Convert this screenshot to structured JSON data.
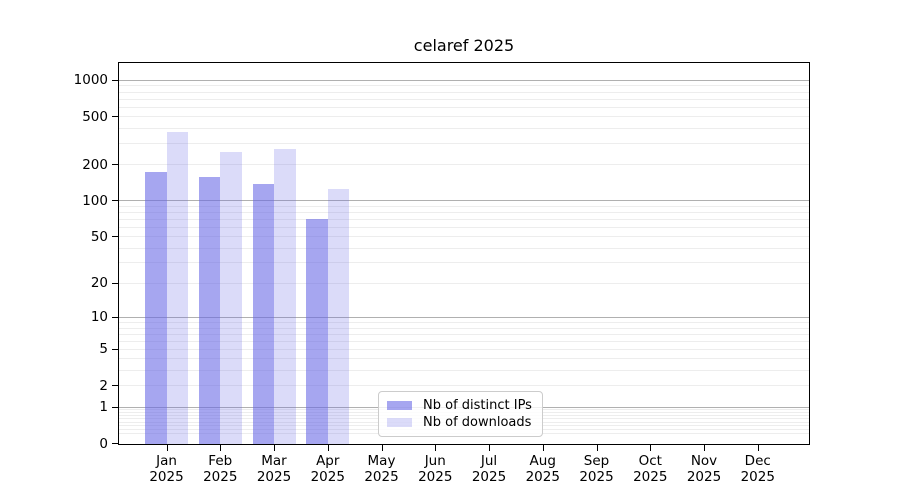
{
  "chart_data": {
    "type": "bar",
    "title": "celaref 2025",
    "categories": [
      "Jan 2025",
      "Feb 2025",
      "Mar 2025",
      "Apr 2025",
      "May 2025",
      "Jun 2025",
      "Jul 2025",
      "Aug 2025",
      "Sep 2025",
      "Oct 2025",
      "Nov 2025",
      "Dec 2025"
    ],
    "months": [
      "Jan",
      "Feb",
      "Mar",
      "Apr",
      "May",
      "Jun",
      "Jul",
      "Aug",
      "Sep",
      "Oct",
      "Nov",
      "Dec"
    ],
    "year": "2025",
    "series": [
      {
        "name": "Nb of distinct IPs",
        "color": "rgba(102,102,230,0.58)",
        "values": [
          175,
          159,
          140,
          71,
          0,
          0,
          0,
          0,
          0,
          0,
          0,
          0
        ]
      },
      {
        "name": "Nb of downloads",
        "color": "rgba(102,102,230,0.235)",
        "values": [
          379,
          259,
          272,
          126,
          0,
          0,
          0,
          0,
          0,
          0,
          0,
          0
        ]
      }
    ],
    "xlabel": "",
    "ylabel": "",
    "y_axis": {
      "scale": "log1p",
      "ticks": [
        0,
        1,
        2,
        5,
        10,
        20,
        50,
        100,
        200,
        500,
        1000
      ],
      "ylim": [
        0,
        1404
      ]
    },
    "grid": {
      "major_values": [
        1,
        10,
        100,
        1000
      ],
      "minor_decades": [
        0.1,
        1,
        10,
        100
      ],
      "major_color": "#b0b0b0",
      "minor_color": "#ededed"
    },
    "legend": {
      "position": "lower center",
      "entries": [
        "Nb of distinct IPs",
        "Nb of downloads"
      ]
    },
    "colors": {
      "background": "#ffffff",
      "spine": "#000000",
      "text": "#000000"
    }
  }
}
